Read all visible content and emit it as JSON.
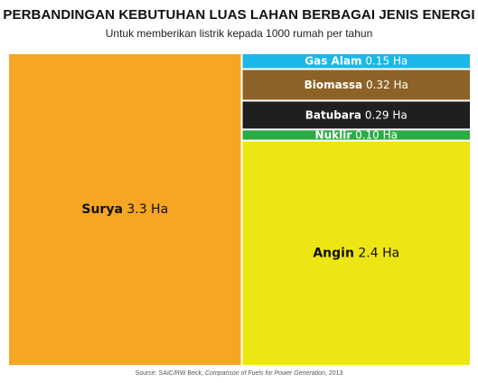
{
  "chart_data": {
    "type": "treemap",
    "title": "PERBANDINGAN KEBUTUHAN LUAS LAHAN BERBAGAI JENIS ENERGI",
    "subtitle": "Untuk memberikan listrik kepada 1000 rumah per tahun",
    "unit": "Ha",
    "items": [
      {
        "name": "Surya",
        "value": 3.3,
        "value_label": "3.3 Ha",
        "color": "#f5a623",
        "text_color": "#111111"
      },
      {
        "name": "Gas Alam",
        "value": 0.15,
        "value_label": "0.15 Ha",
        "color": "#1ab8e8",
        "text_color": "#ffffff"
      },
      {
        "name": "Biomassa",
        "value": 0.32,
        "value_label": "0.32 Ha",
        "color": "#8c6226",
        "text_color": "#ffffff"
      },
      {
        "name": "Batubara",
        "value": 0.29,
        "value_label": "0.29 Ha",
        "color": "#1f1f1f",
        "text_color": "#ffffff"
      },
      {
        "name": "Nuklir",
        "value": 0.1,
        "value_label": "0.10 Ha",
        "color": "#2bab48",
        "text_color": "#ffffff"
      },
      {
        "name": "Angin",
        "value": 2.4,
        "value_label": "2.4 Ha",
        "color": "#eee514",
        "text_color": "#111111"
      }
    ],
    "source": {
      "prefix": "Source: SAIC/RW Beck,",
      "work": "Comparison of Fuels for Power Generation",
      "suffix": ", 2013"
    }
  }
}
